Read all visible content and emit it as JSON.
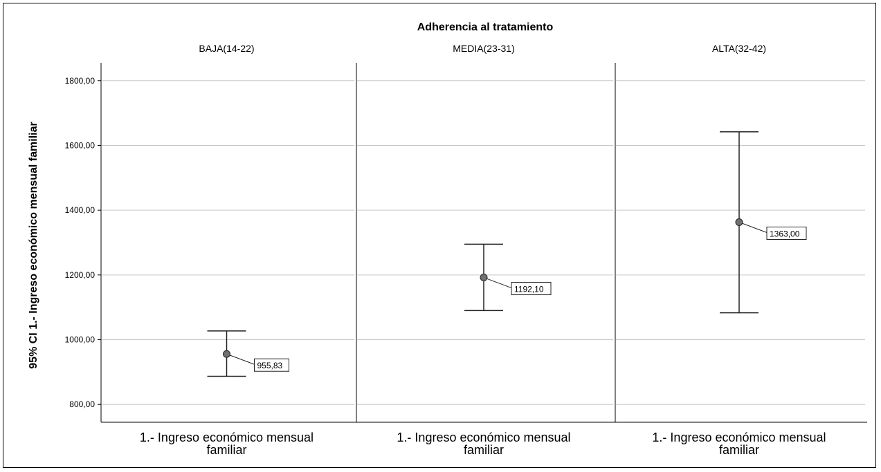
{
  "chart_data": {
    "type": "errorbar",
    "title": "Adherencia al tratamiento",
    "ylabel": "95% CI 1.- Ingreso económico mensual familiar",
    "ylim": [
      745,
      1855
    ],
    "yticks": [
      800,
      1000,
      1200,
      1400,
      1600,
      1800
    ],
    "ytick_labels": [
      "800,00",
      "1000,00",
      "1200,00",
      "1400,00",
      "1600,00",
      "1800,00"
    ],
    "grid": true,
    "panels": [
      {
        "label": "BAJA(14-22)",
        "xlabel": "1.- Ingreso económico mensual familiar",
        "mean": 955.83,
        "mean_label": "955,83",
        "ci_low": 887,
        "ci_high": 1027
      },
      {
        "label": "MEDIA(23-31)",
        "xlabel": "1.- Ingreso económico mensual familiar",
        "mean": 1192.1,
        "mean_label": "1192,10",
        "ci_low": 1090,
        "ci_high": 1295
      },
      {
        "label": "ALTA(32-42)",
        "xlabel": "1.- Ingreso económico mensual familiar",
        "mean": 1363.0,
        "mean_label": "1363,00",
        "ci_low": 1083,
        "ci_high": 1642
      }
    ]
  }
}
